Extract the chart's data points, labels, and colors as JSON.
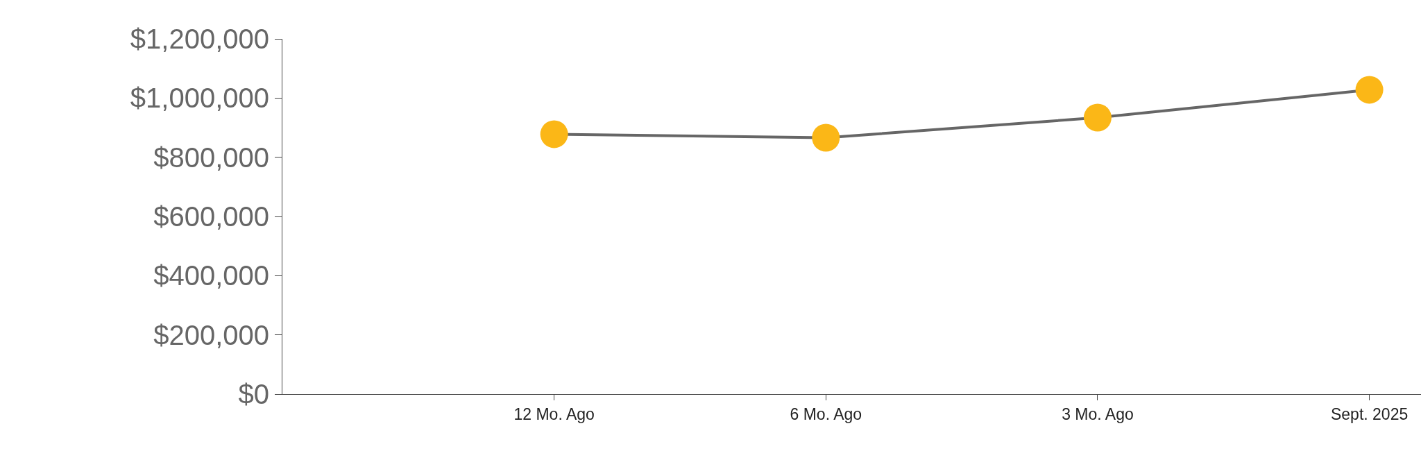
{
  "chart_data": {
    "type": "line",
    "categories": [
      null,
      "12 Mo. Ago",
      "6 Mo. Ago",
      "3 Mo. Ago",
      "Sept. 2025"
    ],
    "series": [
      {
        "color": "#666666",
        "colors": [
          null,
          "#fbb717",
          "#fbb717",
          "#fbb717",
          "#fbb717"
        ],
        "values": [
          null,
          878000,
          866000,
          934000,
          1028000
        ]
      }
    ],
    "ylim": [
      0,
      1200000
    ],
    "yticks": [
      {
        "value": 0,
        "label": "$0"
      },
      {
        "value": 200000,
        "label": "$200,000"
      },
      {
        "value": 400000,
        "label": "$400,000"
      },
      {
        "value": 600000,
        "label": "$600,000"
      },
      {
        "value": 800000,
        "label": "$800,000"
      },
      {
        "value": 1000000,
        "label": "$1,000,000"
      },
      {
        "value": 1200000,
        "label": "$1,200,000"
      }
    ],
    "grid": false,
    "marker": "circle",
    "line_style": "solid"
  }
}
